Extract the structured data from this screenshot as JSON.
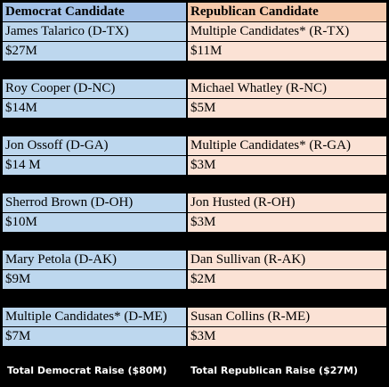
{
  "header": {
    "columns": [
      "Democrat Candidate",
      "Republican Candidate"
    ]
  },
  "races": [
    {
      "democrat": {
        "name": "James Talarico (D-TX)",
        "raise": "$27M"
      },
      "republican": {
        "name": "Multiple Candidates* (R-TX)",
        "raise": "$11M"
      }
    },
    {
      "democrat": {
        "name": "Roy Cooper (D-NC)",
        "raise": "$14M"
      },
      "republican": {
        "name": "Michael Whatley (R-NC)",
        "raise": "$5M"
      }
    },
    {
      "democrat": {
        "name": "Jon Ossoff (D-GA)",
        "raise": "$14 M"
      },
      "republican": {
        "name": "Multiple Candidates* (R-GA)",
        "raise": "$3M"
      }
    },
    {
      "democrat": {
        "name": "Sherrod Brown (D-OH)",
        "raise": "$10M"
      },
      "republican": {
        "name": "Jon Husted (R-OH)",
        "raise": "$3M"
      }
    },
    {
      "democrat": {
        "name": "Mary Petola (D-AK)",
        "raise": "$9M"
      },
      "republican": {
        "name": "Dan Sullivan (R-AK)",
        "raise": "$2M"
      }
    },
    {
      "democrat": {
        "name": "Multiple Candidates* (D-ME)",
        "raise": "$7M"
      },
      "republican": {
        "name": "Susan Collins (R-ME)",
        "raise": "$3M"
      }
    }
  ],
  "footer": {
    "totals": [
      "Total Democrat Raise ($80M)",
      "Total Republican Raise ($27M)"
    ]
  }
}
